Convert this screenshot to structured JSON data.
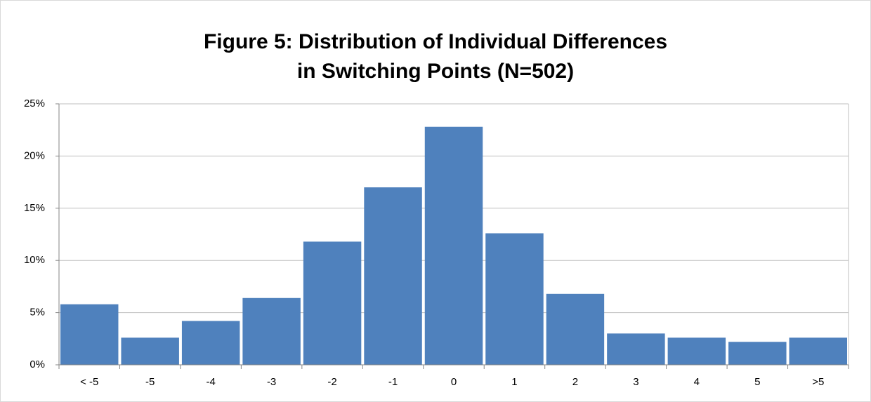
{
  "chart_data": {
    "type": "bar",
    "title": [
      "Figure 5: Distribution of Individual Differences",
      "in Switching Points (N=502)"
    ],
    "categories": [
      "< -5",
      "-5",
      "-4",
      "-3",
      "-2",
      "-1",
      "0",
      "1",
      "2",
      "3",
      "4",
      "5",
      ">5"
    ],
    "values": [
      5.8,
      2.6,
      4.2,
      6.4,
      11.8,
      17.0,
      22.8,
      12.6,
      6.8,
      3.0,
      2.6,
      2.2,
      2.6
    ],
    "color": "#4f81bd",
    "ylim": [
      0,
      25
    ],
    "yticks": [
      {
        "value": 0,
        "label": "0%"
      },
      {
        "value": 5,
        "label": "5%"
      },
      {
        "value": 10,
        "label": "10%"
      },
      {
        "value": 15,
        "label": "15%"
      },
      {
        "value": 20,
        "label": "20%"
      },
      {
        "value": 25,
        "label": "25%"
      }
    ],
    "grid": true
  }
}
